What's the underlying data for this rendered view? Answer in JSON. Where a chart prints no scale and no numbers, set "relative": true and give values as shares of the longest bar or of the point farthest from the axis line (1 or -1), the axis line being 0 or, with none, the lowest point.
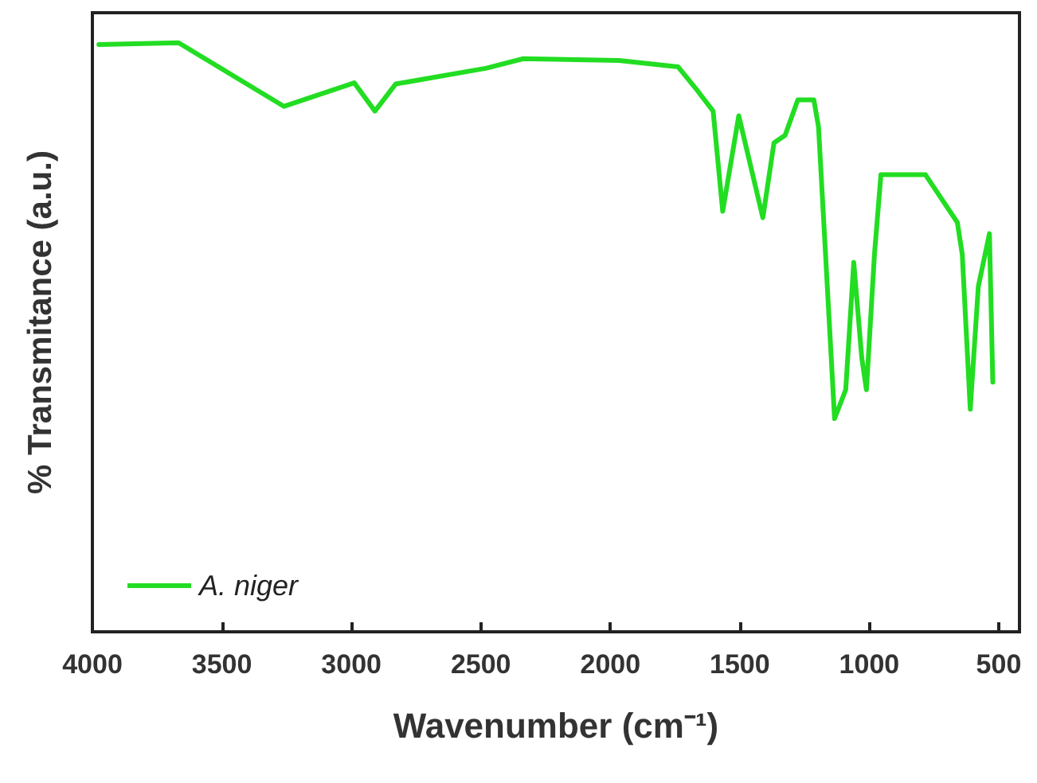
{
  "chart_data": {
    "type": "line",
    "xlabel": "Wavenumber (cm⁻¹)",
    "ylabel": "% Transmitance (a.u.)",
    "relative": true,
    "xlim": [
      4000,
      420
    ],
    "xticks": [
      4000,
      3500,
      3000,
      2500,
      2000,
      1500,
      1000,
      500
    ],
    "grid": false,
    "legend": "bottom left",
    "marker": "none",
    "line_style": "solid",
    "series": [
      {
        "name": "A. niger",
        "color": "#22dd22",
        "x": [
          3975,
          3667,
          3260,
          2989,
          2909,
          2829,
          2478,
          2336,
          1966,
          1738,
          1664,
          1603,
          1566,
          1504,
          1411,
          1368,
          1325,
          1276,
          1214,
          1196,
          1153,
          1134,
          1091,
          1060,
          1029,
          1011,
          980,
          955,
          888,
          783,
          660,
          641,
          610,
          579,
          536,
          523
        ],
        "values": [
          0.997,
          1,
          0.892,
          0.932,
          0.884,
          0.93,
          0.957,
          0.973,
          0.97,
          0.959,
          0.919,
          0.884,
          0.714,
          0.876,
          0.703,
          0.83,
          0.843,
          0.903,
          0.903,
          0.857,
          0.514,
          0.362,
          0.411,
          0.627,
          0.465,
          0.411,
          0.641,
          0.776,
          0.776,
          0.776,
          0.695,
          0.641,
          0.378,
          0.586,
          0.676,
          0.424
        ]
      }
    ]
  }
}
